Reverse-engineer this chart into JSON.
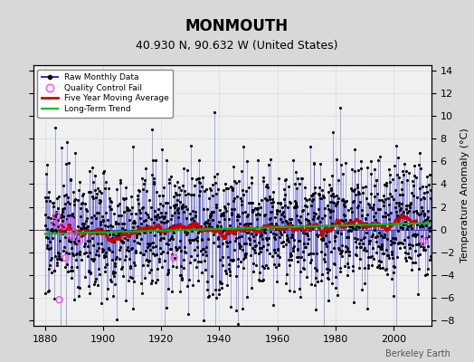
{
  "title": "MONMOUTH",
  "subtitle": "40.930 N, 90.632 W (United States)",
  "credit": "Berkeley Earth",
  "ylabel": "Temperature Anomaly (°C)",
  "xlim": [
    1876,
    2013
  ],
  "ylim": [
    -8.5,
    14.5
  ],
  "yticks": [
    -8,
    -6,
    -4,
    -2,
    0,
    2,
    4,
    6,
    8,
    10,
    12,
    14
  ],
  "xticks": [
    1880,
    1900,
    1920,
    1940,
    1960,
    1980,
    2000
  ],
  "year_start": 1880,
  "year_end": 2012,
  "seed": 17,
  "bg_color": "#d8d8d8",
  "plot_bg_color": "#f0f0f0",
  "line_color": "#3333cc",
  "ma_color": "#cc0000",
  "trend_color": "#00bb00",
  "qc_color": "#ff44ff",
  "title_fontsize": 12,
  "subtitle_fontsize": 9,
  "label_fontsize": 8,
  "tick_fontsize": 8,
  "noise_std": 2.8,
  "trend_slope": 0.006
}
